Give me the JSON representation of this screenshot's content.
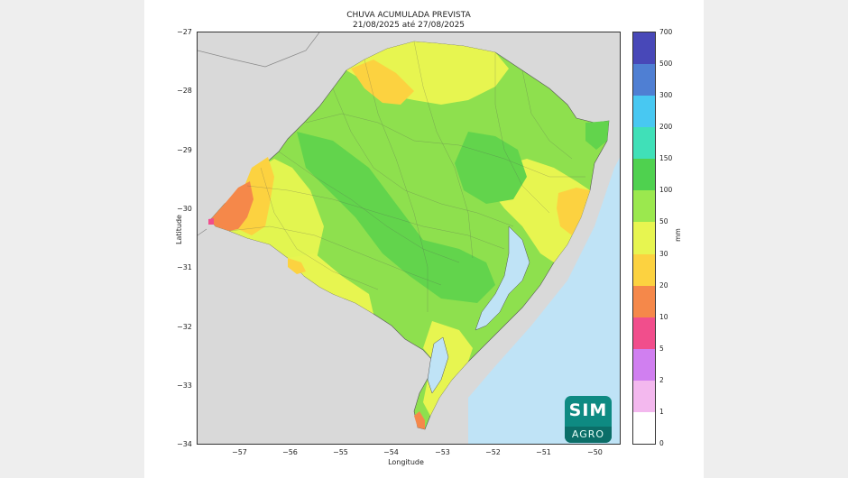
{
  "title": "CHUVA ACUMULADA PREVISTA",
  "subtitle": "21/08/2025 até 27/08/2025",
  "axes": {
    "xlabel": "Longitude",
    "ylabel": "Latitude",
    "x_ticks": [
      "−57",
      "−56",
      "−55",
      "−54",
      "−53",
      "−52",
      "−51",
      "−50"
    ],
    "y_ticks": [
      "−27",
      "−28",
      "−29",
      "−30",
      "−31",
      "−32",
      "−33",
      "−34"
    ],
    "x_range": [
      -57.8,
      -49.5
    ],
    "y_range": [
      -34,
      -27
    ]
  },
  "colorbar": {
    "unit": "mm",
    "levels": [
      "0",
      "1",
      "2",
      "5",
      "10",
      "20",
      "30",
      "50",
      "100",
      "150",
      "200",
      "300",
      "500",
      "700"
    ],
    "colors": [
      "#ffffff",
      "#f3b8ee",
      "#d07ff0",
      "#f14e8c",
      "#f5884a",
      "#fcd240",
      "#e7f550",
      "#9be84e",
      "#4fd14f",
      "#40e0b8",
      "#48c8f2",
      "#4f7fd3",
      "#4848b8"
    ]
  },
  "map_colors": {
    "land_outside": "#d9d9d9",
    "ocean": "#bfe3f6",
    "lagoon": "#bfe3f6"
  },
  "logo": {
    "line1": "SIM",
    "line2": "AGRO"
  }
}
